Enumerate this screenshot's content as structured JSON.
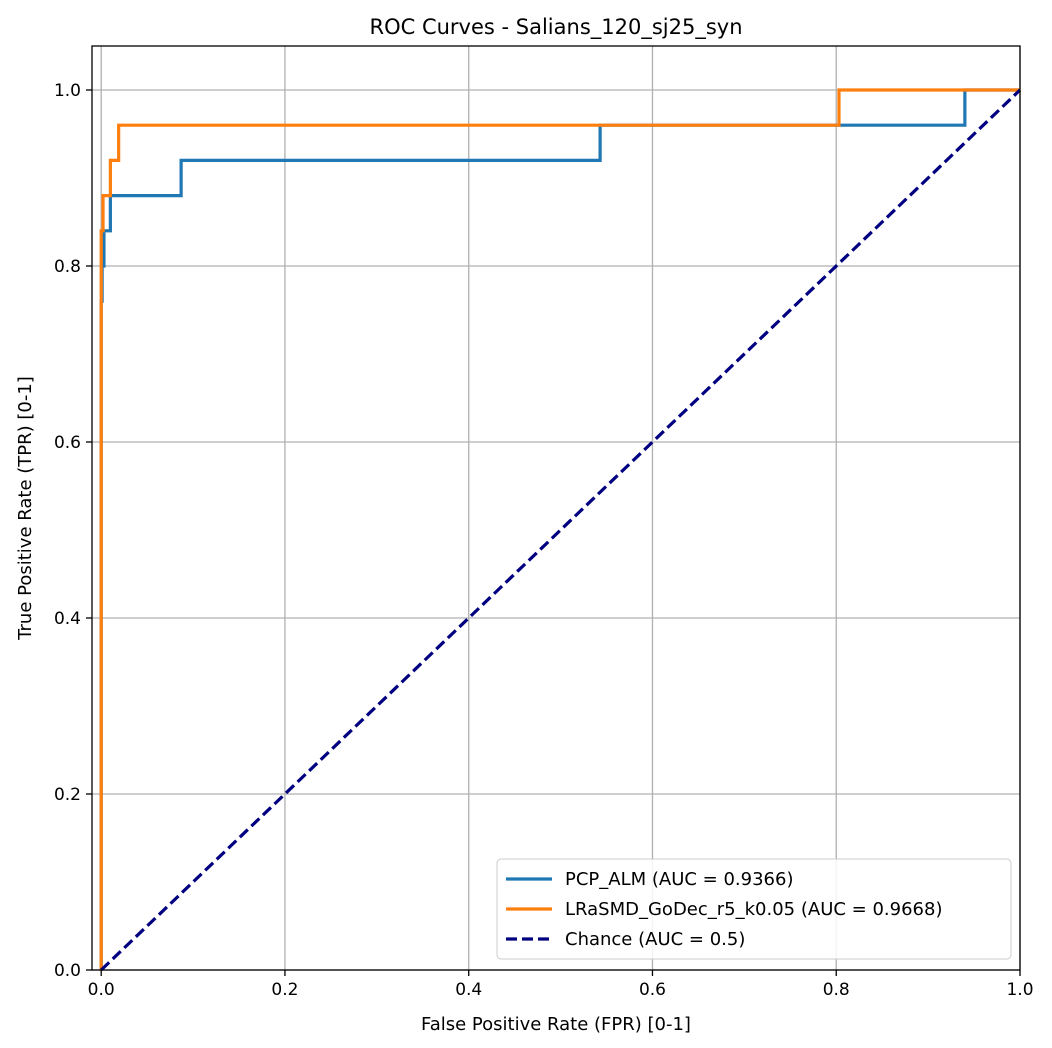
{
  "chart_data": {
    "type": "line",
    "title": "ROC Curves - Salians_120_sj25_syn",
    "xlabel": "False Positive Rate (FPR) [0-1]",
    "ylabel": "True Positive Rate (TPR) [0-1]",
    "xlim": [
      -0.01,
      1.0
    ],
    "ylim": [
      0.0,
      1.05
    ],
    "xticks": [
      0.0,
      0.2,
      0.4,
      0.6,
      0.8,
      1.0
    ],
    "yticks": [
      0.0,
      0.2,
      0.4,
      0.6,
      0.8,
      1.0
    ],
    "xtick_labels": [
      "0.0",
      "0.2",
      "0.4",
      "0.6",
      "0.8",
      "1.0"
    ],
    "ytick_labels": [
      "0.0",
      "0.2",
      "0.4",
      "0.6",
      "0.8",
      "1.0"
    ],
    "grid": true,
    "legend_position": "lower-right",
    "series": [
      {
        "name": "PCP_ALM (AUC = 0.9366)",
        "color": "#1f77b4",
        "dash": "solid",
        "x": [
          0,
          0,
          0.001,
          0.001,
          0.003,
          0.003,
          0.01,
          0.01,
          0.087,
          0.087,
          0.543,
          0.543,
          0.94,
          0.94,
          1.0
        ],
        "y": [
          0,
          0.76,
          0.76,
          0.8,
          0.8,
          0.84,
          0.84,
          0.88,
          0.88,
          0.92,
          0.92,
          0.96,
          0.96,
          1.0,
          1.0
        ]
      },
      {
        "name": "LRaSMD_GoDec_r5_k0.05 (AUC = 0.9668)",
        "color": "#ff7f0e",
        "dash": "solid",
        "x": [
          0,
          0,
          0.002,
          0.002,
          0.01,
          0.01,
          0.019,
          0.019,
          0.803,
          0.803,
          1.0
        ],
        "y": [
          0,
          0.84,
          0.84,
          0.88,
          0.88,
          0.92,
          0.92,
          0.96,
          0.96,
          1.0,
          1.0
        ]
      },
      {
        "name": "Chance (AUC = 0.5)",
        "color": "#000080",
        "dash": "dashed",
        "x": [
          0,
          1
        ],
        "y": [
          0,
          1
        ]
      }
    ]
  }
}
